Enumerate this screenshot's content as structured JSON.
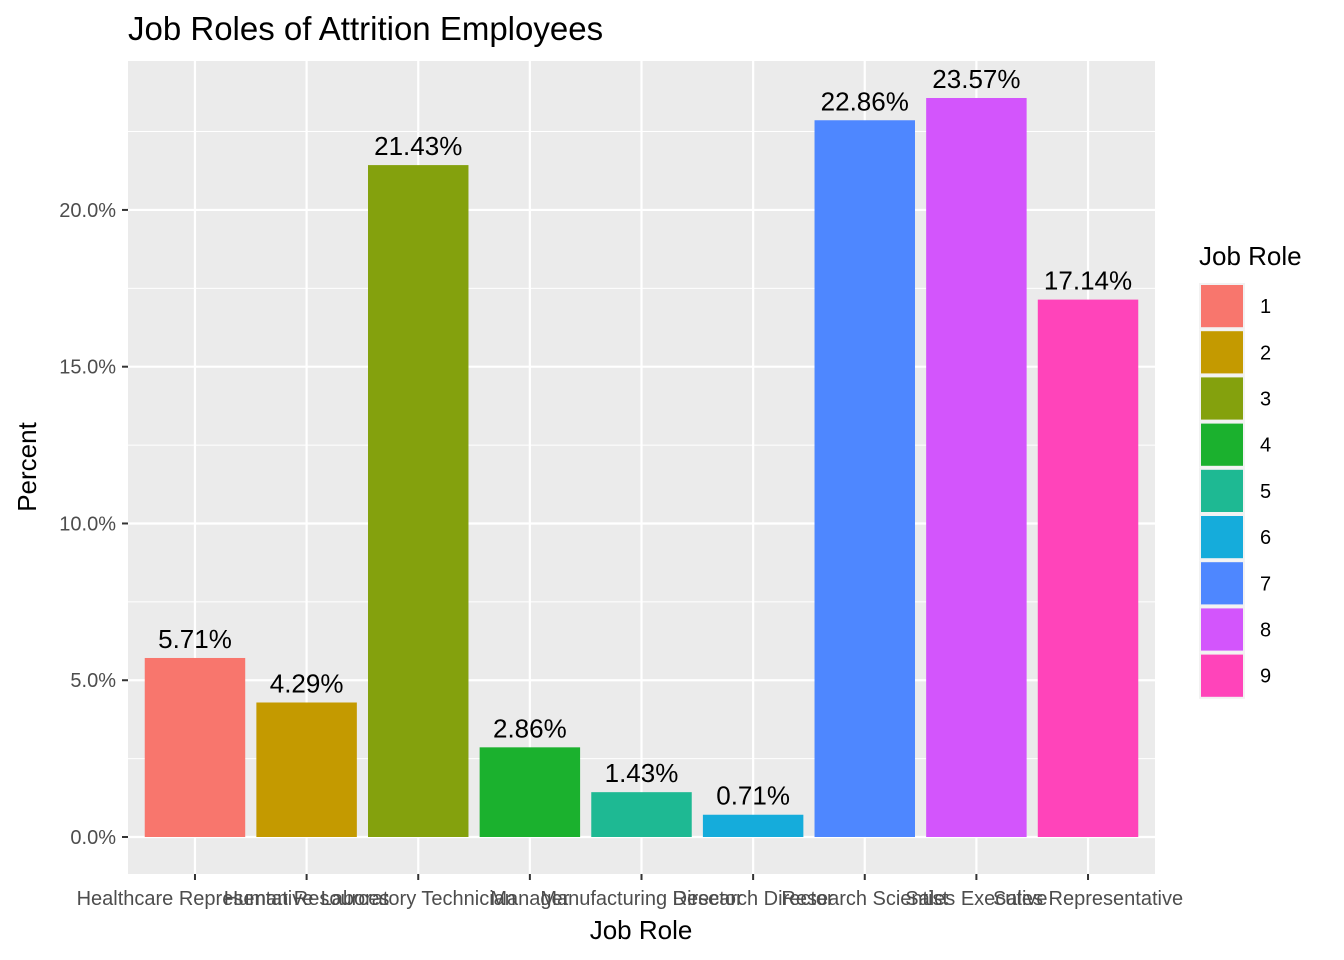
{
  "chart_data": {
    "type": "bar",
    "title": "Job Roles of Attrition Employees",
    "xlabel": "Job Role",
    "ylabel": "Percent",
    "categories": [
      "Healthcare Representative",
      "Human Resources",
      "Laboratory Technician",
      "Manager",
      "Manufacturing Director",
      "Research Director",
      "Research Scientist",
      "Sales Executive",
      "Sales Representative"
    ],
    "values": [
      5.71,
      4.29,
      21.43,
      2.86,
      1.43,
      0.71,
      22.86,
      23.57,
      17.14
    ],
    "data_labels": [
      "5.71%",
      "4.29%",
      "21.43%",
      "2.86%",
      "1.43%",
      "0.71%",
      "22.86%",
      "23.57%",
      "17.14%"
    ],
    "colors": [
      "#F8766D",
      "#C49A00",
      "#84A10D",
      "#1BB12E",
      "#1EB993",
      "#15ACDB",
      "#4E87FF",
      "#D355FC",
      "#FF44BA"
    ],
    "y_ticks": [
      0,
      5,
      10,
      15,
      20
    ],
    "y_tick_labels": [
      "0.0%",
      "5.0%",
      "10.0%",
      "15.0%",
      "20.0%"
    ],
    "ylim": [
      -1.18,
      24.75
    ],
    "grid": true,
    "legend": {
      "title": "Job Role",
      "placement": "right",
      "entries": [
        "1",
        "2",
        "3",
        "4",
        "5",
        "6",
        "7",
        "8",
        "9"
      ]
    }
  }
}
